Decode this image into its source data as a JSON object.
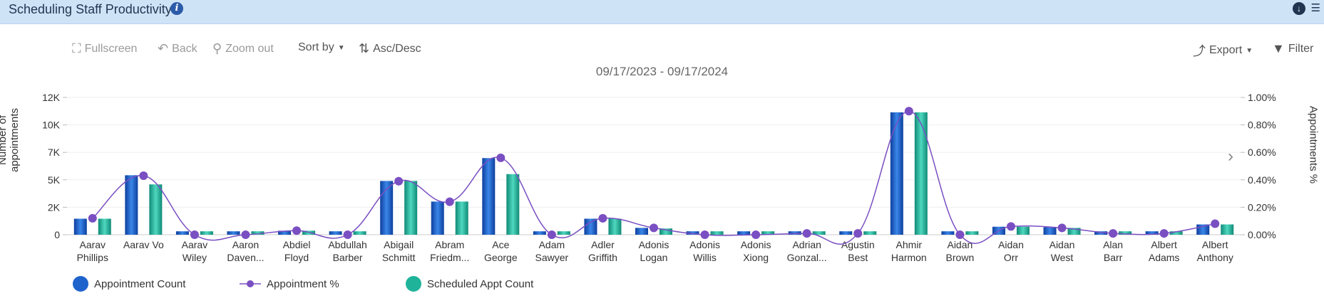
{
  "header": {
    "title": "Scheduling Staff Productivity"
  },
  "toolbar": {
    "fullscreen": "Fullscreen",
    "back": "Back",
    "zoom_out": "Zoom out",
    "sort_by": "Sort by",
    "asc_desc": "Asc/Desc",
    "export": "Export",
    "filter": "Filter"
  },
  "colors": {
    "bar1": "#1e63cc",
    "bar2": "#1fb39a",
    "line": "#7a4fc2",
    "header_bg": "#cfe3f7"
  },
  "chart_data": {
    "type": "bar",
    "title": "09/17/2023 - 09/17/2024",
    "ylabel": "Number of appointments",
    "y2label": "Appointments %",
    "ylim": [
      0,
      12000
    ],
    "y2lim": [
      0,
      1.0
    ],
    "yticks": [
      "0",
      "2K",
      "5K",
      "7K",
      "10K",
      "12K"
    ],
    "y2ticks": [
      "0.00%",
      "0.20%",
      "0.40%",
      "0.60%",
      "0.80%",
      "1.00%"
    ],
    "categories": [
      [
        "Aarav",
        "Phillips"
      ],
      [
        "Aarav Vo"
      ],
      [
        "Aarav",
        "Wiley"
      ],
      [
        "Aaron",
        "Daven..."
      ],
      [
        "Abdiel",
        "Floyd"
      ],
      [
        "Abdullah",
        "Barber"
      ],
      [
        "Abigail",
        "Schmitt"
      ],
      [
        "Abram",
        "Friedm..."
      ],
      [
        "Ace",
        "George"
      ],
      [
        "Adam",
        "Sawyer"
      ],
      [
        "Adler",
        "Griffith"
      ],
      [
        "Adonis",
        "Logan"
      ],
      [
        "Adonis",
        "Willis"
      ],
      [
        "Adonis",
        "Xiong"
      ],
      [
        "Adrian",
        "Gonzal..."
      ],
      [
        "Agustin",
        "Best"
      ],
      [
        "Ahmir",
        "Harmon"
      ],
      [
        "Aidan",
        "Brown"
      ],
      [
        "Aidan",
        "Orr"
      ],
      [
        "Aidan",
        "West"
      ],
      [
        "Alan",
        "Barr"
      ],
      [
        "Albert",
        "Adams"
      ],
      [
        "Albert",
        "Anthony"
      ]
    ],
    "series": [
      {
        "name": "Appointment Count",
        "type": "bar",
        "values": [
          1400,
          5200,
          300,
          300,
          350,
          300,
          4700,
          2900,
          6700,
          300,
          1400,
          600,
          300,
          300,
          300,
          300,
          10700,
          300,
          700,
          650,
          300,
          300,
          900
        ]
      },
      {
        "name": "Scheduled Appt Count",
        "type": "bar",
        "values": [
          1400,
          4400,
          300,
          300,
          350,
          300,
          4700,
          2900,
          5300,
          300,
          1400,
          550,
          300,
          300,
          300,
          300,
          10700,
          300,
          700,
          600,
          300,
          300,
          900
        ]
      },
      {
        "name": "Appointment %",
        "type": "line",
        "axis": "right",
        "values": [
          0.12,
          0.43,
          0.0,
          0.0,
          0.03,
          0.0,
          0.39,
          0.24,
          0.56,
          0.0,
          0.12,
          0.05,
          0.0,
          0.0,
          0.01,
          0.01,
          0.9,
          0.0,
          0.06,
          0.05,
          0.01,
          0.01,
          0.08
        ]
      }
    ],
    "legend_position": "bottom-left",
    "grid": true
  }
}
